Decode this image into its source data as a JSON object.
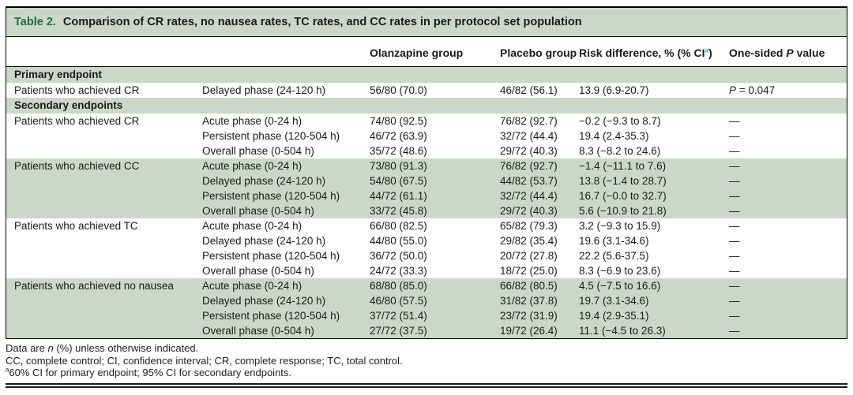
{
  "table": {
    "label": "Table 2.",
    "title": "Comparison of CR rates, no nausea rates, TC rates, and CC rates in per protocol set population",
    "header": {
      "olanzapine": "Olanzapine group",
      "placebo": "Placebo group",
      "risk_pre": "Risk difference, % (% CI",
      "risk_sup": "a",
      "risk_post": ")",
      "pvalue_pre": "One-sided ",
      "pvalue_symbol": "P",
      "pvalue_post": " value"
    },
    "rows": [
      {
        "kind": "section",
        "label": "Primary endpoint"
      },
      {
        "kind": "data",
        "shaded": false,
        "endpoint": "Patients who achieved CR",
        "phase": "Delayed phase (24-120 h)",
        "olanzapine": "56/80 (70.0)",
        "placebo": "46/82 (56.1)",
        "risk": "13.9 (6.9-20.7)",
        "p_symbol": "P",
        "p_rest": " = 0.047"
      },
      {
        "kind": "section",
        "label": "Secondary endpoints"
      },
      {
        "kind": "data",
        "shaded": false,
        "endpoint": "Patients who achieved CR",
        "phase": "Acute phase (0-24 h)",
        "olanzapine": "74/80 (92.5)",
        "placebo": "76/82 (92.7)",
        "risk": "−0.2 (−9.3 to 8.7)",
        "p": "—"
      },
      {
        "kind": "data",
        "shaded": false,
        "endpoint": "",
        "phase": "Persistent phase (120-504 h)",
        "olanzapine": "46/72 (63.9)",
        "placebo": "32/72 (44.4)",
        "risk": "19.4 (2.4-35.3)",
        "p": "—"
      },
      {
        "kind": "data",
        "shaded": false,
        "endpoint": "",
        "phase": "Overall phase (0-504 h)",
        "olanzapine": "35/72 (48.6)",
        "placebo": "29/72 (40.3)",
        "risk": "8.3 (−8.2 to 24.6)",
        "p": "—"
      },
      {
        "kind": "data",
        "shaded": true,
        "endpoint": "Patients who achieved CC",
        "phase": "Acute phase (0-24 h)",
        "olanzapine": "73/80 (91.3)",
        "placebo": "76/82 (92.7)",
        "risk": "−1.4 (−11.1 to 7.6)",
        "p": "—"
      },
      {
        "kind": "data",
        "shaded": true,
        "endpoint": "",
        "phase": "Delayed phase (24-120 h)",
        "olanzapine": "54/80 (67.5)",
        "placebo": "44/82 (53.7)",
        "risk": "13.8 (−1.4 to 28.7)",
        "p": "—"
      },
      {
        "kind": "data",
        "shaded": true,
        "endpoint": "",
        "phase": "Persistent phase (120-504 h)",
        "olanzapine": "44/72 (61.1)",
        "placebo": "32/72 (44.4)",
        "risk": "16.7 (−0.0 to 32.7)",
        "p": "—"
      },
      {
        "kind": "data",
        "shaded": true,
        "endpoint": "",
        "phase": "Overall phase (0-504 h)",
        "olanzapine": "33/72 (45.8)",
        "placebo": "29/72 (40.3)",
        "risk": "5.6 (−10.9 to 21.8)",
        "p": "—"
      },
      {
        "kind": "data",
        "shaded": false,
        "endpoint": "Patients who achieved TC",
        "phase": "Acute phase (0-24 h)",
        "olanzapine": "66/80 (82.5)",
        "placebo": "65/82 (79.3)",
        "risk": "3.2 (−9.3 to 15.9)",
        "p": "—"
      },
      {
        "kind": "data",
        "shaded": false,
        "endpoint": "",
        "phase": "Delayed phase (24-120 h)",
        "olanzapine": "44/80 (55.0)",
        "placebo": "29/82 (35.4)",
        "risk": "19.6 (3.1-34.6)",
        "p": "—"
      },
      {
        "kind": "data",
        "shaded": false,
        "endpoint": "",
        "phase": "Persistent phase (120-504 h)",
        "olanzapine": "36/72 (50.0)",
        "placebo": "20/72 (27.8)",
        "risk": "22.2 (5.6-37.5)",
        "p": "—"
      },
      {
        "kind": "data",
        "shaded": false,
        "endpoint": "",
        "phase": "Overall phase (0-504 h)",
        "olanzapine": "24/72 (33.3)",
        "placebo": "18/72 (25.0)",
        "risk": "8.3 (−6.9 to 23.6)",
        "p": "—"
      },
      {
        "kind": "data",
        "shaded": true,
        "endpoint": "Patients who achieved no nausea",
        "phase": "Acute phase (0-24 h)",
        "olanzapine": "68/80 (85.0)",
        "placebo": "66/82 (80.5)",
        "risk": "4.5 (−7.5 to 16.6)",
        "p": "—"
      },
      {
        "kind": "data",
        "shaded": true,
        "endpoint": "",
        "phase": "Delayed phase (24-120 h)",
        "olanzapine": "46/80 (57.5)",
        "placebo": "31/82 (37.8)",
        "risk": "19.7 (3.1-34.6)",
        "p": "—"
      },
      {
        "kind": "data",
        "shaded": true,
        "endpoint": "",
        "phase": "Persistent phase (120-504 h)",
        "olanzapine": "37/72 (51.4)",
        "placebo": "23/72 (31.9)",
        "risk": "19.4 (2.9-35.1)",
        "p": "—"
      },
      {
        "kind": "data",
        "shaded": true,
        "endpoint": "",
        "phase": "Overall phase (0-504 h)",
        "olanzapine": "27/72 (37.5)",
        "placebo": "19/72 (26.4)",
        "risk": "11.1 (−4.5 to 26.3)",
        "p": "—"
      }
    ],
    "footnotes": {
      "line1_pre": "Data are ",
      "line1_italic": "n",
      "line1_post": " (%) unless otherwise indicated.",
      "line2": "CC, complete control; CI, confidence interval; CR, complete response; TC, total control.",
      "line3_sup": "a",
      "line3": "60% CI for primary endpoint; 95% CI for secondary endpoints."
    },
    "colors": {
      "band_green": "#cbd8c8",
      "table_label_green": "#1b6f44",
      "superscript_blue": "#2e9bc6"
    }
  }
}
